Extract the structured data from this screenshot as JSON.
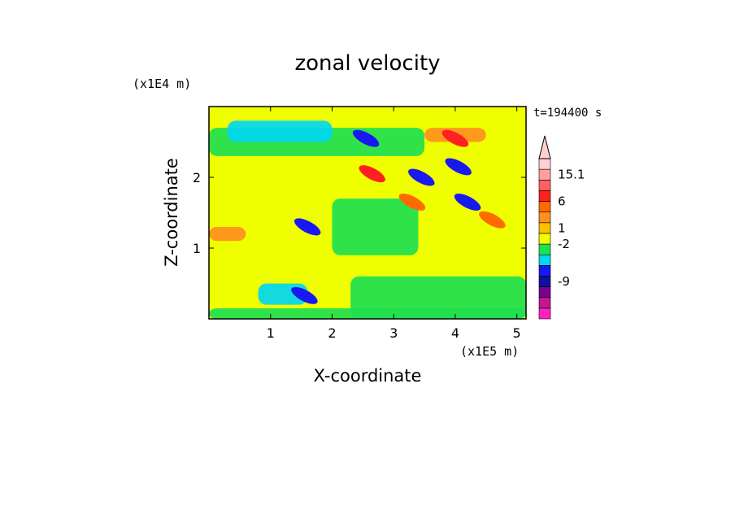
{
  "chart_data": {
    "type": "heatmap",
    "title": "zonal velocity",
    "time_label": "t=194400 s",
    "xlabel": "X-coordinate",
    "ylabel": "Z-coordinate",
    "x_unit": "(x1E5 m)",
    "y_unit": "(x1E4 m)",
    "xlim": [
      0,
      5.15
    ],
    "ylim": [
      0,
      3.0
    ],
    "x_ticks": [
      1,
      2,
      3,
      4,
      5
    ],
    "y_ticks": [
      1,
      2
    ],
    "colorbar": {
      "levels": [
        {
          "color": "#ff20c0"
        },
        {
          "color": "#c01890"
        },
        {
          "color": "#7a0090"
        },
        {
          "color": "#1010a0"
        },
        {
          "color": "#1818f0"
        },
        {
          "color": "#00d8f0"
        },
        {
          "color": "#20e050"
        },
        {
          "color": "#f0ff00"
        },
        {
          "color": "#ffc000"
        },
        {
          "color": "#ff9020"
        },
        {
          "color": "#ff6a00"
        },
        {
          "color": "#ff2020"
        },
        {
          "color": "#ff6060"
        },
        {
          "color": "#ffa0a0"
        },
        {
          "color": "#ffd0d0"
        }
      ],
      "labels": [
        {
          "text": "15.1",
          "at_level": 13
        },
        {
          "text": "6",
          "at_level": 10.5
        },
        {
          "text": "1",
          "at_level": 8
        },
        {
          "text": "-2",
          "at_level": 6.5
        },
        {
          "text": "-9",
          "at_level": 3
        }
      ]
    },
    "field": {
      "background_color": "#f0ff00",
      "bands": [
        {
          "color": "#20e050",
          "x": [
            0.0,
            5.15
          ],
          "z": [
            0.0,
            0.15
          ]
        },
        {
          "color": "#20e050",
          "x": [
            2.3,
            5.15
          ],
          "z": [
            0.0,
            0.6
          ]
        },
        {
          "color": "#20e050",
          "x": [
            2.0,
            3.4
          ],
          "z": [
            0.9,
            1.7
          ]
        },
        {
          "color": "#20e050",
          "x": [
            0.0,
            3.5
          ],
          "z": [
            2.3,
            2.7
          ]
        },
        {
          "color": "#00d8f0",
          "x": [
            0.8,
            1.6
          ],
          "z": [
            0.2,
            0.5
          ]
        },
        {
          "color": "#00d8f0",
          "x": [
            0.3,
            2.0
          ],
          "z": [
            2.5,
            2.8
          ]
        },
        {
          "color": "#ff9020",
          "x": [
            0.0,
            0.6
          ],
          "z": [
            1.1,
            1.3
          ]
        },
        {
          "color": "#ff9020",
          "x": [
            3.5,
            4.5
          ],
          "z": [
            2.5,
            2.7
          ]
        }
      ],
      "blobs": [
        {
          "color": "#1818f0",
          "x": 1.55,
          "z": 0.33
        },
        {
          "color": "#1818f0",
          "x": 1.6,
          "z": 1.3
        },
        {
          "color": "#1818f0",
          "x": 2.55,
          "z": 2.55
        },
        {
          "color": "#1818f0",
          "x": 3.45,
          "z": 2.0
        },
        {
          "color": "#1818f0",
          "x": 4.05,
          "z": 2.15
        },
        {
          "color": "#1818f0",
          "x": 4.2,
          "z": 1.65
        },
        {
          "color": "#ff2020",
          "x": 2.65,
          "z": 2.05
        },
        {
          "color": "#ff2020",
          "x": 4.0,
          "z": 2.55
        },
        {
          "color": "#ff6a00",
          "x": 3.3,
          "z": 1.65
        },
        {
          "color": "#ff6a00",
          "x": 4.6,
          "z": 1.4
        }
      ]
    }
  }
}
